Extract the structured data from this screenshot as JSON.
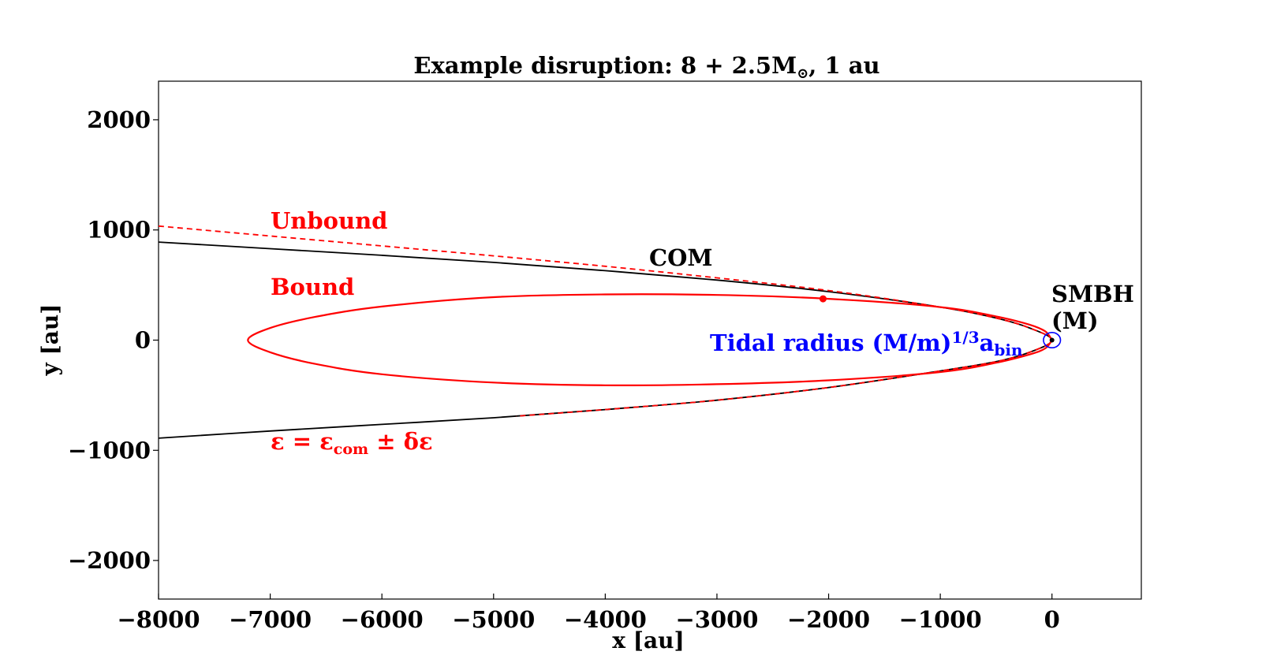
{
  "chart_data": {
    "type": "scatter",
    "title": "Example disruption: 8 + 2.5M☉, 1 au",
    "title_parts": {
      "main": "Example disruption: 8 + 2.5M",
      "sub": "⊙",
      "tail": ", 1 au"
    },
    "xlabel": "x [au]",
    "ylabel": "y [au]",
    "xlim": [
      -8000,
      800
    ],
    "ylim": [
      -2350,
      2350
    ],
    "xticks": [
      -8000,
      -7000,
      -6000,
      -5000,
      -4000,
      -3000,
      -2000,
      -1000,
      0
    ],
    "xtick_labels": [
      "−8000",
      "−7000",
      "−6000",
      "−5000",
      "−4000",
      "−3000",
      "−2000",
      "−1000",
      "0"
    ],
    "yticks": [
      -2000,
      -1000,
      0,
      1000,
      2000
    ],
    "ytick_labels": [
      "−2000",
      "−1000",
      "0",
      "1000",
      "2000"
    ],
    "grid": false,
    "colors": {
      "com": "#000000",
      "bound": "#ff0000",
      "unbound": "#ff0000",
      "tidal": "#0000ff"
    },
    "series": [
      {
        "name": "COM",
        "style": "solid",
        "color": "#000000",
        "points": [
          [
            -8000,
            890
          ],
          [
            -7000,
            830
          ],
          [
            -6000,
            770
          ],
          [
            -5000,
            705
          ],
          [
            -4000,
            630
          ],
          [
            -3000,
            545
          ],
          [
            -2000,
            440
          ],
          [
            -1000,
            300
          ],
          [
            -500,
            200
          ],
          [
            -200,
            110
          ],
          [
            0,
            0
          ],
          [
            -200,
            -110
          ],
          [
            -500,
            -195
          ],
          [
            -1000,
            -280
          ],
          [
            -2000,
            -430
          ],
          [
            -3000,
            -545
          ],
          [
            -4000,
            -630
          ],
          [
            -5000,
            -705
          ],
          [
            -6000,
            -765
          ],
          [
            -7000,
            -825
          ],
          [
            -8000,
            -890
          ]
        ]
      },
      {
        "name": "Unbound",
        "style": "dashed",
        "color": "#ff0000",
        "points": [
          [
            -8000,
            1035
          ],
          [
            -7000,
            945
          ],
          [
            -6000,
            855
          ],
          [
            -5000,
            765
          ],
          [
            -4000,
            670
          ],
          [
            -3000,
            565
          ],
          [
            -2000,
            450
          ],
          [
            -1000,
            300
          ],
          [
            -500,
            200
          ],
          [
            -200,
            110
          ],
          [
            0,
            0
          ],
          [
            -200,
            -110
          ],
          [
            -500,
            -195
          ],
          [
            -1000,
            -280
          ],
          [
            -2000,
            -430
          ],
          [
            -3000,
            -545
          ],
          [
            -4000,
            -630
          ],
          [
            -4800,
            -690
          ]
        ]
      },
      {
        "name": "Bound",
        "style": "solid",
        "color": "#ff0000",
        "points": [
          [
            0,
            0
          ],
          [
            -60,
            80
          ],
          [
            -200,
            140
          ],
          [
            -500,
            215
          ],
          [
            -1000,
            300
          ],
          [
            -2000,
            375
          ],
          [
            -3000,
            410
          ],
          [
            -4000,
            415
          ],
          [
            -5000,
            390
          ],
          [
            -6000,
            305
          ],
          [
            -6600,
            210
          ],
          [
            -7000,
            110
          ],
          [
            -7200,
            0
          ],
          [
            -7000,
            -110
          ],
          [
            -6600,
            -215
          ],
          [
            -6000,
            -310
          ],
          [
            -5000,
            -385
          ],
          [
            -4000,
            -410
          ],
          [
            -3000,
            -400
          ],
          [
            -2000,
            -365
          ],
          [
            -1000,
            -290
          ],
          [
            -500,
            -205
          ],
          [
            -200,
            -130
          ],
          [
            -60,
            -75
          ],
          [
            0,
            0
          ]
        ]
      }
    ],
    "markers": [
      {
        "name": "bound-star",
        "x": -2050,
        "y": 375,
        "color": "#ff0000"
      },
      {
        "name": "smbh",
        "x": 0,
        "y": 0,
        "color": "#000000"
      }
    ],
    "tidal_circle": {
      "x": 0,
      "y": 0,
      "r": 55,
      "color": "#0000ff"
    },
    "annotations": {
      "unbound": "Unbound",
      "bound": "Bound",
      "com": "COM",
      "smbh_line1": "SMBH",
      "smbh_line2": "(M)",
      "tidal_main": "Tidal radius (M/m)",
      "tidal_sup": "1/3",
      "tidal_a": "a",
      "tidal_sub": "bin",
      "energy_eps": "ε = ε",
      "energy_sub": "com",
      "energy_tail": " ± δε"
    }
  }
}
